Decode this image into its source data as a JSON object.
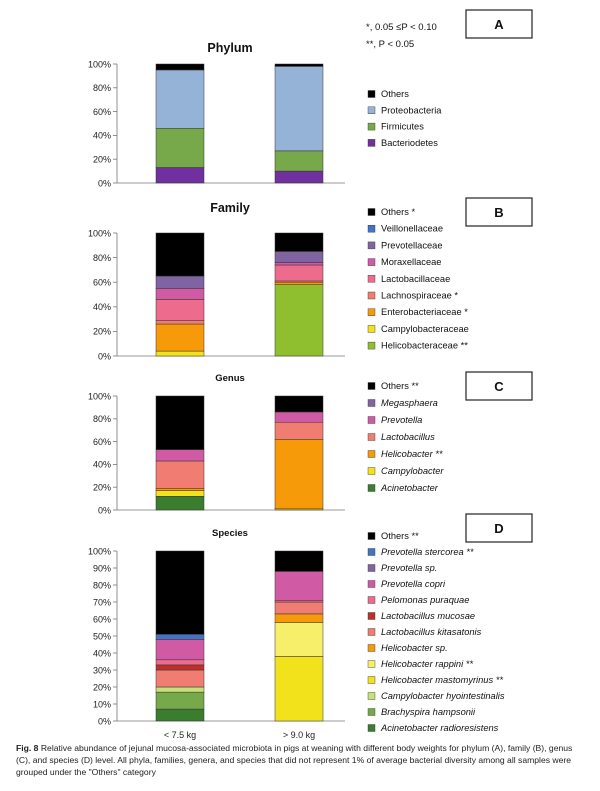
{
  "significance": {
    "line1": "*, 0.05 ≤P < 0.10",
    "line2": "**, P < 0.05"
  },
  "colors": {
    "Others": "#000000",
    "Proteobacteria": "#95b3d7",
    "Firmicutes": "#77a84a",
    "Bacteriodetes": "#7030a0",
    "Veillonellaceae": "#4472c4",
    "Prevotellaceae": "#8064a2",
    "Moraxellaceae": "#d05aa4",
    "Lactobacillaceae": "#ed6b8c",
    "Lachnospiraceae": "#f07c72",
    "Enterobacteriaceae": "#f79a0a",
    "Campylobacteraceae": "#f2e21c",
    "Helicobacteraceae": "#8fbf2f"
  },
  "chart_data": [
    {
      "panel": "A",
      "type": "bar",
      "stacked": true,
      "title": "Phylum",
      "categories": [
        "< 7.5 kg",
        "> 9.0 kg"
      ],
      "ylim": [
        0,
        100
      ],
      "yticks": [
        "0%",
        "20%",
        "40%",
        "60%",
        "80%",
        "100%"
      ],
      "series": [
        {
          "name": "Bacteriodetes",
          "color": "#7030a0",
          "values": [
            13,
            10
          ]
        },
        {
          "name": "Firmicutes",
          "color": "#77a84a",
          "values": [
            33,
            17
          ]
        },
        {
          "name": "Proteobacteria",
          "color": "#95b3d7",
          "values": [
            49,
            71
          ]
        },
        {
          "name": "Others",
          "color": "#000000",
          "values": [
            5,
            2
          ]
        }
      ],
      "legend": [
        {
          "label": "Others",
          "color": "#000000",
          "italic": false
        },
        {
          "label": "Proteobacteria",
          "color": "#95b3d7",
          "italic": false
        },
        {
          "label": "Firmicutes",
          "color": "#77a84a",
          "italic": false
        },
        {
          "label": "Bacteriodetes",
          "color": "#7030a0",
          "italic": false
        }
      ]
    },
    {
      "panel": "B",
      "type": "bar",
      "stacked": true,
      "title": "Family",
      "categories": [
        "< 7.5 kg",
        "> 9.0 kg"
      ],
      "ylim": [
        0,
        100
      ],
      "yticks": [
        "0%",
        "20%",
        "40%",
        "60%",
        "80%",
        "100%"
      ],
      "series": [
        {
          "name": "Helicobacteraceae",
          "color": "#8fbf2f",
          "values": [
            0,
            58
          ]
        },
        {
          "name": "Campylobacteraceae",
          "color": "#f2e21c",
          "values": [
            4,
            0
          ]
        },
        {
          "name": "Enterobacteriaceae",
          "color": "#f79a0a",
          "values": [
            22,
            2
          ]
        },
        {
          "name": "Lachnospiraceae",
          "color": "#f07c72",
          "values": [
            3,
            1
          ]
        },
        {
          "name": "Lactobacillaceae",
          "color": "#ed6b8c",
          "values": [
            17,
            13
          ]
        },
        {
          "name": "Moraxellaceae",
          "color": "#d05aa4",
          "values": [
            9,
            2
          ]
        },
        {
          "name": "Prevotellaceae",
          "color": "#8064a2",
          "values": [
            10,
            9
          ]
        },
        {
          "name": "Veillonellaceae",
          "color": "#4472c4",
          "values": [
            0,
            0
          ]
        },
        {
          "name": "Others",
          "color": "#000000",
          "values": [
            35,
            15
          ]
        }
      ],
      "legend": [
        {
          "label": "Others  *",
          "color": "#000000",
          "italic": false
        },
        {
          "label": "Veillonellaceae",
          "color": "#4472c4",
          "italic": false
        },
        {
          "label": "Prevotellaceae",
          "color": "#8064a2",
          "italic": false
        },
        {
          "label": "Moraxellaceae",
          "color": "#d05aa4",
          "italic": false
        },
        {
          "label": "Lactobacillaceae",
          "color": "#ed6b8c",
          "italic": false
        },
        {
          "label": "Lachnospiraceae  *",
          "color": "#f07c72",
          "italic": false
        },
        {
          "label": "Enterobacteriaceae  *",
          "color": "#f79a0a",
          "italic": false
        },
        {
          "label": "Campylobacteraceae",
          "color": "#f2e21c",
          "italic": false
        },
        {
          "label": "Helicobacteraceae  **",
          "color": "#8fbf2f",
          "italic": false
        }
      ]
    },
    {
      "panel": "C",
      "type": "bar",
      "stacked": true,
      "title": "Genus",
      "categories": [
        "< 7.5 kg",
        "> 9.0 kg"
      ],
      "ylim": [
        0,
        100
      ],
      "yticks": [
        "0%",
        "20%",
        "40%",
        "60%",
        "80%",
        "100%"
      ],
      "series": [
        {
          "name": "Acinetobacter",
          "color": "#3a7d2e",
          "values": [
            12,
            0
          ]
        },
        {
          "name": "Campylobacter",
          "color": "#f2e21c",
          "values": [
            5,
            1
          ]
        },
        {
          "name": "Helicobacter",
          "color": "#f79a0a",
          "values": [
            2,
            61
          ]
        },
        {
          "name": "Lactobacillus",
          "color": "#f07c72",
          "values": [
            24,
            15
          ]
        },
        {
          "name": "Prevotella",
          "color": "#d05aa4",
          "values": [
            10,
            9
          ]
        },
        {
          "name": "Megasphaera",
          "color": "#8064a2",
          "values": [
            0,
            0
          ]
        },
        {
          "name": "Others",
          "color": "#000000",
          "values": [
            47,
            14
          ]
        }
      ],
      "legend": [
        {
          "label": "Others  **",
          "color": "#000000",
          "italic": false
        },
        {
          "label": "Megasphaera",
          "color": "#8064a2",
          "italic": true
        },
        {
          "label": "Prevotella",
          "color": "#d05aa4",
          "italic": true
        },
        {
          "label": "Lactobacillus",
          "color": "#f07c72",
          "italic": true
        },
        {
          "label": "Helicobacter  **",
          "color": "#f79a0a",
          "italic": true
        },
        {
          "label": "Campylobacter",
          "color": "#f2e21c",
          "italic": true
        },
        {
          "label": "Acinetobacter",
          "color": "#3a7d2e",
          "italic": true
        }
      ]
    },
    {
      "panel": "D",
      "type": "bar",
      "stacked": true,
      "title": "Species",
      "categories": [
        "< 7.5 kg",
        "> 9.0 kg"
      ],
      "ylim": [
        0,
        100
      ],
      "yticks": [
        "0%",
        "10%",
        "20%",
        "30%",
        "40%",
        "50%",
        "60%",
        "70%",
        "80%",
        "90%",
        "100%"
      ],
      "series": [
        {
          "name": "Acinetobacter radioresistens",
          "color": "#3a7d2e",
          "values": [
            7,
            0
          ]
        },
        {
          "name": "Brachyspira hampsonii",
          "color": "#77a84a",
          "values": [
            10,
            0
          ]
        },
        {
          "name": "Campylobacter hyointestinalis",
          "color": "#c6e07a",
          "values": [
            3,
            0
          ]
        },
        {
          "name": "Helicobacter mastomyrinus",
          "color": "#f2e21c",
          "values": [
            0,
            38
          ]
        },
        {
          "name": "Helicobacter rappini",
          "color": "#f7ee6a",
          "values": [
            0,
            20
          ]
        },
        {
          "name": "Helicobacter sp.",
          "color": "#f79a0a",
          "values": [
            0,
            5
          ]
        },
        {
          "name": "Lactobacillus kitasatonis",
          "color": "#f07c72",
          "values": [
            10,
            7
          ]
        },
        {
          "name": "Lactobacillus mucosae",
          "color": "#c0302a",
          "values": [
            3,
            0
          ]
        },
        {
          "name": "Pelomonas puraquae",
          "color": "#ed6b8c",
          "values": [
            3,
            1
          ]
        },
        {
          "name": "Prevotella copri",
          "color": "#d05aa4",
          "values": [
            12,
            17
          ]
        },
        {
          "name": "Prevotella sp.",
          "color": "#8064a2",
          "values": [
            0,
            0
          ]
        },
        {
          "name": "Prevotella stercorea",
          "color": "#4472c4",
          "values": [
            3,
            0
          ]
        },
        {
          "name": "Others",
          "color": "#000000",
          "values": [
            49,
            12
          ]
        }
      ],
      "legend": [
        {
          "label": "Others **",
          "color": "#000000",
          "italic": false
        },
        {
          "label": "Prevotella stercorea **",
          "color": "#4472c4",
          "italic": true
        },
        {
          "label": "Prevotella sp.",
          "color": "#8064a2",
          "italic": true
        },
        {
          "label": "Prevotella copri",
          "color": "#d05aa4",
          "italic": true
        },
        {
          "label": "Pelomonas puraquae",
          "color": "#ed6b8c",
          "italic": true
        },
        {
          "label": "Lactobacillus mucosae",
          "color": "#c0302a",
          "italic": true
        },
        {
          "label": "Lactobacillus kitasatonis",
          "color": "#f07c72",
          "italic": true
        },
        {
          "label": "Helicobacter sp.",
          "color": "#f79a0a",
          "italic": true
        },
        {
          "label": "Helicobacter rappini  **",
          "color": "#f7ee6a",
          "italic": true
        },
        {
          "label": "Helicobacter mastomyrinus  **",
          "color": "#f2e21c",
          "italic": true
        },
        {
          "label": "Campylobacter hyointestinalis",
          "color": "#c6e07a",
          "italic": true
        },
        {
          "label": "Brachyspira hampsonii",
          "color": "#77a84a",
          "italic": true
        },
        {
          "label": "Acinetobacter radioresistens",
          "color": "#3a7d2e",
          "italic": true
        }
      ]
    }
  ],
  "caption": {
    "label": "Fig. 8",
    "text": " Relative abundance of jejunal mucosa-associated microbiota in pigs at weaning with different body weights for phylum (A), family (B), genus (C), and species (D) level. All phyla, families, genera, and species that did not represent 1% of average bacterial diversity among all samples were grouped under the \"Others\" category"
  }
}
